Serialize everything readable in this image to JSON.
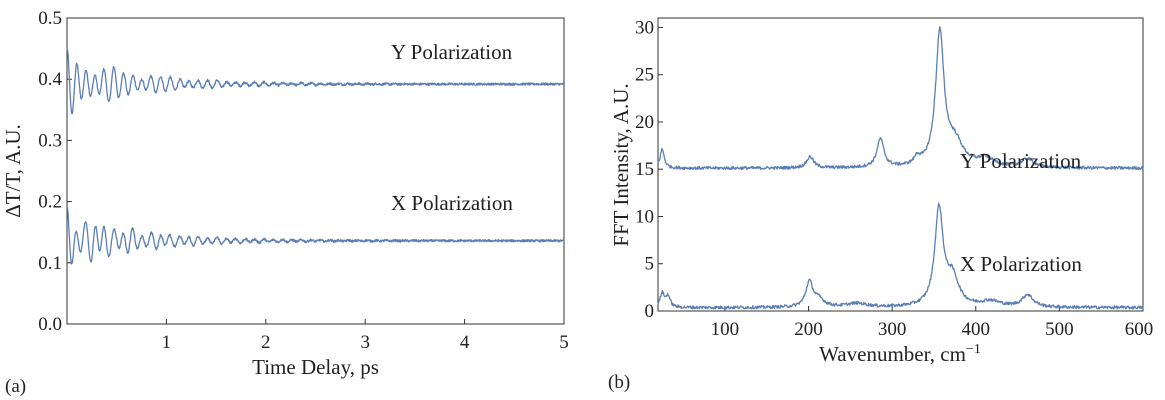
{
  "chart_data": [
    {
      "type": "line",
      "panel_label": "(a)",
      "xlabel": "Time Delay, ps",
      "ylabel": "ΔT/T, A.U.",
      "xlim": [
        0,
        5
      ],
      "ylim": [
        0,
        0.5
      ],
      "xticks": [
        1,
        2,
        3,
        4,
        5
      ],
      "yticks": [
        0.0,
        0.1,
        0.2,
        0.3,
        0.4,
        0.5
      ],
      "ytick_labels": [
        "0.0",
        "0.1",
        "0.2",
        "0.3",
        "0.4",
        "0.5"
      ],
      "grid": false,
      "color": "#5b7fb5",
      "series": [
        {
          "label": "Y Polarization",
          "baseline": 0.392,
          "oscillation": [
            {
              "freq_thz": 10.6,
              "amp": 0.036,
              "decay_ps": 0.75
            },
            {
              "freq_thz": 8.55,
              "amp": 0.016,
              "decay_ps": 0.6
            },
            {
              "freq_thz": 6.0,
              "amp": 0.007,
              "decay_ps": 0.5
            }
          ],
          "noise": 0.0018
        },
        {
          "label": "X Polarization",
          "baseline": 0.136,
          "oscillation": [
            {
              "freq_thz": 10.6,
              "amp": 0.034,
              "decay_ps": 0.75
            },
            {
              "freq_thz": 6.0,
              "amp": 0.016,
              "decay_ps": 0.55
            },
            {
              "freq_thz": 13.8,
              "amp": 0.006,
              "decay_ps": 0.5
            }
          ],
          "noise": 0.0018
        }
      ]
    },
    {
      "type": "line",
      "panel_label": "(b)",
      "xlabel": "Wavenumber, cm",
      "xlabel_superscript": "−1",
      "ylabel": "FFT Intensity, A.U.",
      "xlim": [
        20,
        600
      ],
      "ylim": [
        0,
        31
      ],
      "xticks": [
        100,
        200,
        300,
        400,
        500,
        600
      ],
      "yticks": [
        0,
        5,
        10,
        15,
        20,
        25,
        30
      ],
      "grid": false,
      "color": "#5b7fb5",
      "series": [
        {
          "label": "Y Polarization",
          "baseline": 15.1,
          "peaks": [
            {
              "center": 25,
              "height": 2.0,
              "width": 3
            },
            {
              "center": 202,
              "height": 1.2,
              "width": 5
            },
            {
              "center": 286,
              "height": 3.0,
              "width": 5
            },
            {
              "center": 330,
              "height": 0.8,
              "width": 4
            },
            {
              "center": 357,
              "height": 14.0,
              "width": 6
            },
            {
              "center": 375,
              "height": 2.5,
              "width": 12
            },
            {
              "center": 412,
              "height": 0.9,
              "width": 12
            },
            {
              "center": 462,
              "height": 0.9,
              "width": 9
            }
          ]
        },
        {
          "label": "X Polarization",
          "baseline": 0.35,
          "peaks": [
            {
              "center": 25,
              "height": 1.5,
              "width": 3
            },
            {
              "center": 32,
              "height": 1.2,
              "width": 3
            },
            {
              "center": 201,
              "height": 2.6,
              "width": 5
            },
            {
              "center": 212,
              "height": 0.8,
              "width": 8
            },
            {
              "center": 258,
              "height": 0.4,
              "width": 15
            },
            {
              "center": 356,
              "height": 10.2,
              "width": 6
            },
            {
              "center": 372,
              "height": 3.0,
              "width": 9
            },
            {
              "center": 418,
              "height": 0.6,
              "width": 14
            },
            {
              "center": 462,
              "height": 1.3,
              "width": 8
            }
          ]
        }
      ]
    }
  ]
}
